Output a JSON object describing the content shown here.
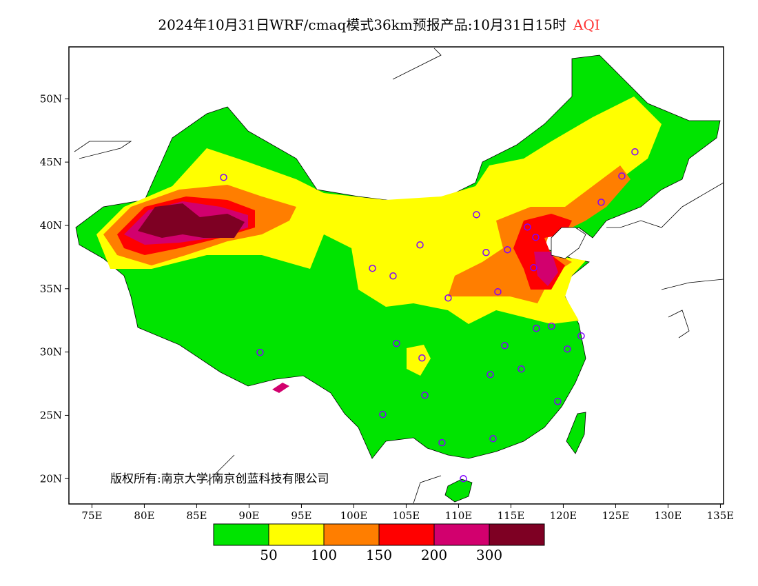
{
  "title": {
    "main": "2024年10月31日WRF/cmaq模式36km预报产品:10月31日15时",
    "variable": "AQI",
    "variable_color": "#ff3333"
  },
  "copyright": "版权所有:南京大学|南京创蓝科技有限公司",
  "axes": {
    "lon_ticks": [
      "75E",
      "80E",
      "85E",
      "90E",
      "95E",
      "100E",
      "105E",
      "110E",
      "115E",
      "120E",
      "125E",
      "130E",
      "135E"
    ],
    "lat_ticks": [
      "20N",
      "25N",
      "30N",
      "35N",
      "40N",
      "45N",
      "50N"
    ],
    "lon_range": [
      72.8,
      135.3
    ],
    "lat_range": [
      18.0,
      54.1
    ]
  },
  "colorbar": {
    "colors": [
      "#00e400",
      "#ffff00",
      "#ff7e00",
      "#ff0000",
      "#d2006e",
      "#7e0023"
    ],
    "labels": [
      "50",
      "100",
      "150",
      "200",
      "300"
    ]
  },
  "stations": [
    [
      87.57,
      43.79
    ],
    [
      91.05,
      29.97
    ],
    [
      101.78,
      36.61
    ],
    [
      103.75,
      36.01
    ],
    [
      106.32,
      38.46
    ],
    [
      104.08,
      30.68
    ],
    [
      106.51,
      29.53
    ],
    [
      102.76,
      25.07
    ],
    [
      106.78,
      26.59
    ],
    [
      108.42,
      22.84
    ],
    [
      109.01,
      34.27
    ],
    [
      111.71,
      40.85
    ],
    [
      112.63,
      37.86
    ],
    [
      114.67,
      38.08
    ],
    [
      113.75,
      34.76
    ],
    [
      116.58,
      39.87
    ],
    [
      117.37,
      39.06
    ],
    [
      117.17,
      36.66
    ],
    [
      117.43,
      31.87
    ],
    [
      118.88,
      32.04
    ],
    [
      114.41,
      30.51
    ],
    [
      113.03,
      28.22
    ],
    [
      115.99,
      28.66
    ],
    [
      113.29,
      23.16
    ],
    [
      110.46,
      20.0
    ],
    [
      119.47,
      26.1
    ],
    [
      120.39,
      30.24
    ],
    [
      121.71,
      31.27
    ],
    [
      123.62,
      41.83
    ],
    [
      125.59,
      43.9
    ],
    [
      126.84,
      45.81
    ]
  ]
}
